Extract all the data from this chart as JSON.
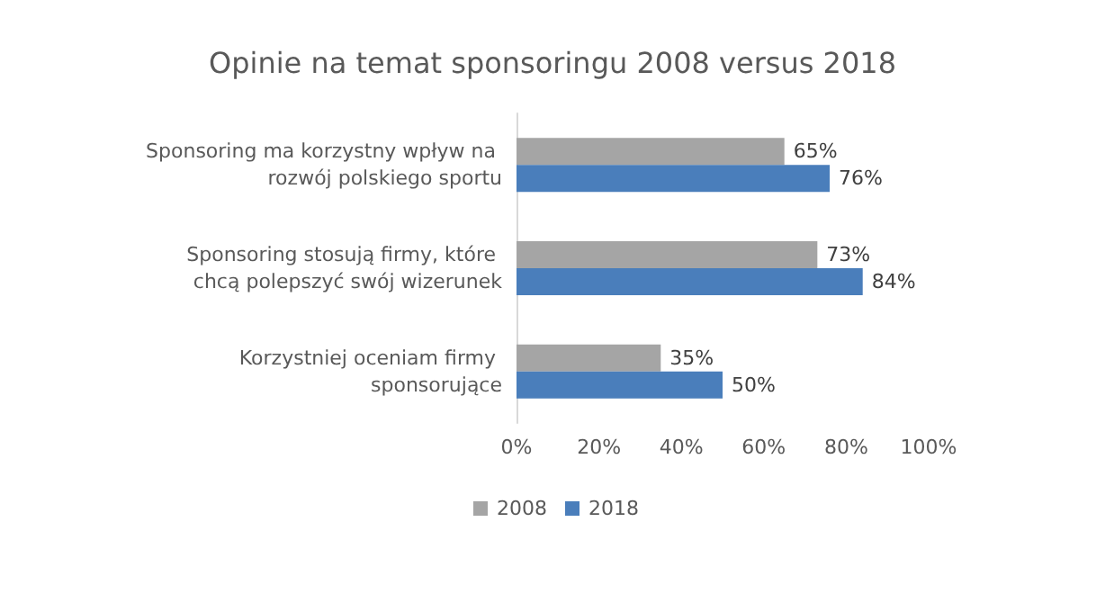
{
  "chart_data": {
    "type": "bar",
    "orientation": "horizontal",
    "title": "Opinie na temat sponsoringu 2008 versus 2018",
    "categories": [
      "Sponsoring ma korzystny wpływ na rozwój polskiego sportu",
      "Sponsoring stosują firmy, które chcą polepszyć swój wizerunek",
      "Korzystniej oceniam firmy sponsorujące"
    ],
    "series": [
      {
        "name": "2008",
        "color": "#a5a5a5",
        "values": [
          65,
          73,
          35
        ],
        "value_labels": [
          "65%",
          "73%",
          "35%"
        ]
      },
      {
        "name": "2018",
        "color": "#4a7ebb",
        "values": [
          76,
          84,
          50
        ],
        "value_labels": [
          "76%",
          "84%",
          "50%"
        ]
      }
    ],
    "xlim": [
      0,
      100
    ],
    "xticks": [
      {
        "value": 0,
        "label": "0%"
      },
      {
        "value": 20,
        "label": "20%"
      },
      {
        "value": 40,
        "label": "40%"
      },
      {
        "value": 60,
        "label": "60%"
      },
      {
        "value": 80,
        "label": "80%"
      },
      {
        "value": 100,
        "label": "100%"
      }
    ],
    "grid": false,
    "legend": "bottom left"
  }
}
